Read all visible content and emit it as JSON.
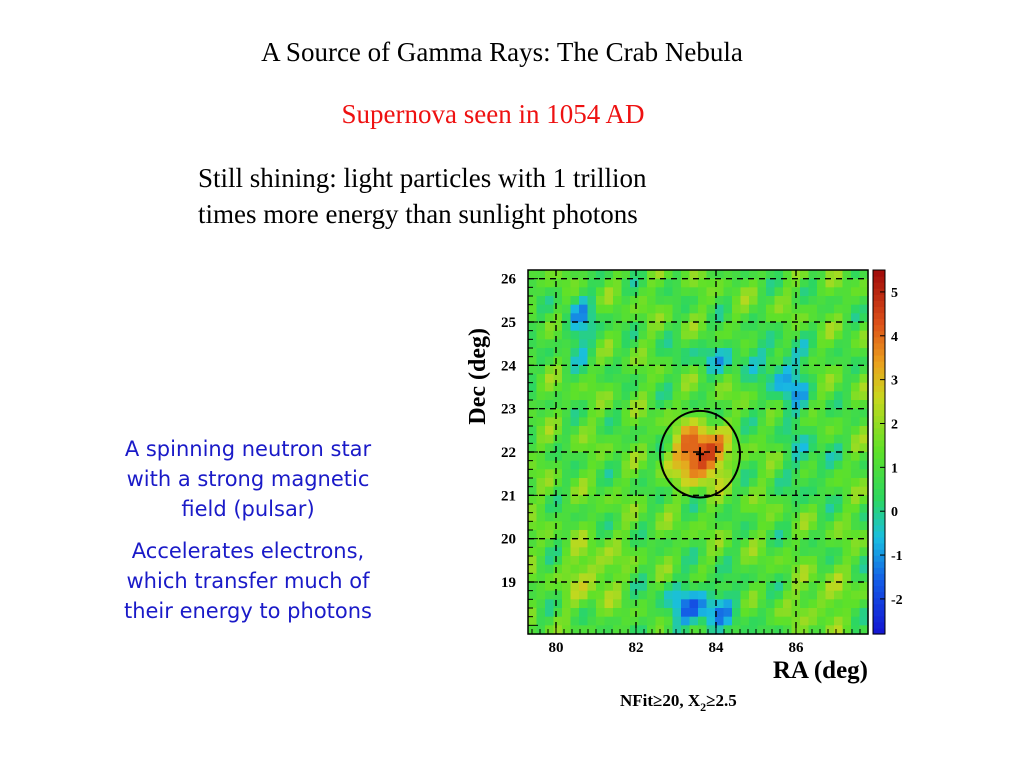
{
  "slide": {
    "title": "A Source of Gamma Rays: The Crab Nebula",
    "subtitle": "Supernova seen in 1054 AD",
    "body_lines": [
      "Still shining: light particles with 1 trillion",
      "times more energy than sunlight photons"
    ],
    "notes": [
      [
        "A spinning neutron star",
        "with a strong magnetic",
        "field (pulsar)"
      ],
      [
        "Accelerates electrons,",
        "which transfer much of",
        "their energy to photons"
      ]
    ],
    "colors": {
      "subtitle": "#ee1111",
      "notes": "#1a1ac8"
    }
  },
  "chart_data": {
    "type": "heatmap",
    "xlabel": "RA (deg)",
    "ylabel": "Dec (deg)",
    "xlim": [
      79.3,
      87.8
    ],
    "ylim": [
      17.8,
      26.2
    ],
    "x_ticks": [
      "80",
      "82",
      "84",
      "86"
    ],
    "y_ticks": [
      "19",
      "20",
      "21",
      "22",
      "23",
      "24",
      "25",
      "26"
    ],
    "colorbar_ticks": [
      "-2",
      "-1",
      "0",
      "1",
      "2",
      "3",
      "4",
      "5"
    ],
    "colorbar_range": [
      -2.8,
      5.5
    ],
    "grid": true,
    "source": {
      "ra": 83.6,
      "dec": 21.95,
      "peak_significance": 5,
      "marker": "+",
      "circle_radius_deg": 1.0
    },
    "cuts": {
      "prefix": "NFit≥20, X",
      "subscript": "2",
      "suffix": "≥2.5"
    }
  }
}
